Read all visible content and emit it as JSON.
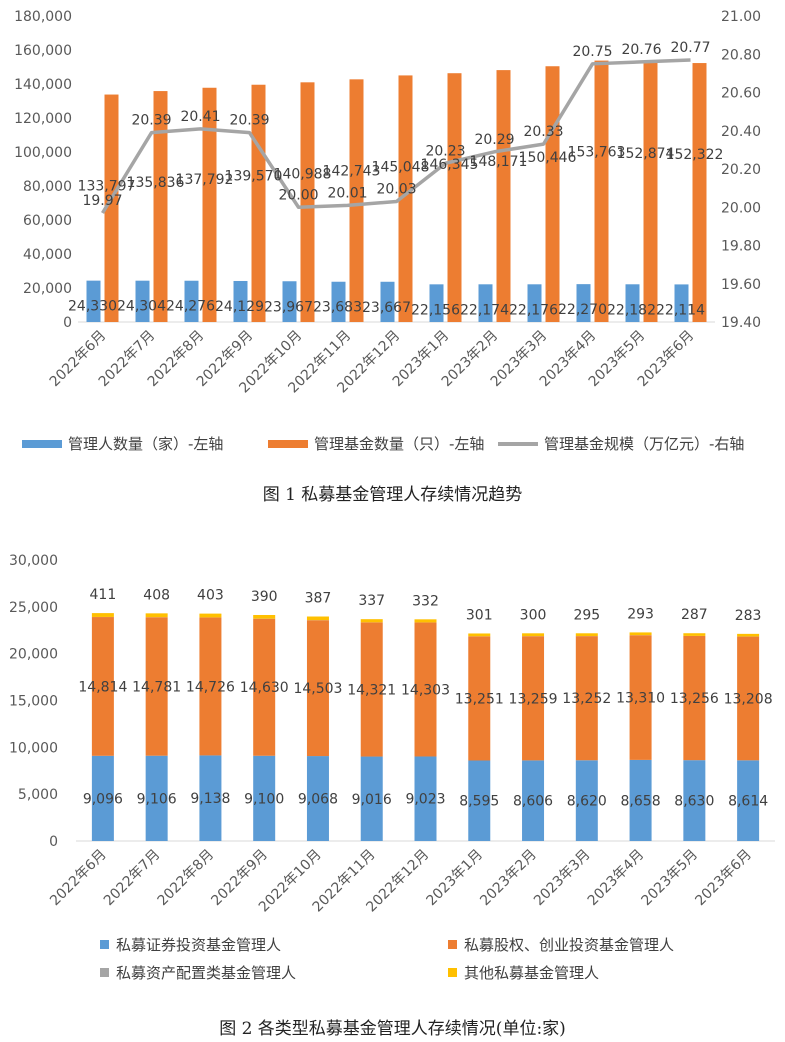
{
  "chart_data": [
    {
      "type": "bar",
      "categories": [
        "2022年6月",
        "2022年7月",
        "2022年8月",
        "2022年9月",
        "2022年10月",
        "2022年11月",
        "2022年12月",
        "2023年1月",
        "2023年2月",
        "2023年3月",
        "2023年4月",
        "2023年5月",
        "2023年6月"
      ],
      "series": [
        {
          "name": "管理人数量（家）-左轴",
          "kind": "bar",
          "axis": "left",
          "color": "#5b9bd5",
          "values": [
            24330,
            24304,
            24276,
            24129,
            23967,
            23683,
            23667,
            22156,
            22174,
            22176,
            22270,
            22182,
            22114
          ],
          "labels": [
            "24,330",
            "24,304",
            "24,276",
            "24,129",
            "23,967",
            "23,683",
            "23,667",
            "22,156",
            "22,174",
            "22,176",
            "22,270",
            "22,182",
            "22,114"
          ]
        },
        {
          "name": "管理基金数量（只）-左轴",
          "kind": "bar",
          "axis": "left",
          "color": "#ed7d31",
          "values": [
            133797,
            135836,
            137792,
            139570,
            140988,
            142743,
            145048,
            146345,
            148171,
            150446,
            153763,
            152874,
            152322
          ],
          "labels": [
            "133,797",
            "135,836",
            "137,792",
            "139,570",
            "140,988",
            "142,743",
            "145,048",
            "146,345",
            "148,171",
            "150,446",
            "153,763",
            "152,874",
            "152,322"
          ]
        },
        {
          "name": "管理基金规模（万亿元）-右轴",
          "kind": "line",
          "axis": "right",
          "color": "#a5a5a5",
          "values": [
            19.97,
            20.39,
            20.41,
            20.39,
            20.0,
            20.01,
            20.03,
            20.23,
            20.29,
            20.33,
            20.75,
            20.76,
            20.77
          ],
          "labels": [
            "19.97",
            "20.39",
            "20.41",
            "20.39",
            "20.00",
            "20.01",
            "20.03",
            "20.23",
            "20.29",
            "20.33",
            "20.75",
            "20.76",
            "20.77"
          ]
        }
      ],
      "left_axis": {
        "min": 0,
        "max": 180000,
        "step": 20000,
        "ticks": [
          "0",
          "20,000",
          "40,000",
          "60,000",
          "80,000",
          "100,000",
          "120,000",
          "140,000",
          "160,000",
          "180,000"
        ]
      },
      "right_axis": {
        "min": 19.4,
        "max": 21.0,
        "step": 0.2,
        "ticks": [
          "19.40",
          "19.60",
          "19.80",
          "20.00",
          "20.20",
          "20.40",
          "20.60",
          "20.80",
          "21.00"
        ]
      },
      "grid": false,
      "legend_position": "bottom",
      "caption": "图 1  私募基金管理人存续情况趋势"
    },
    {
      "type": "stacked-bar",
      "categories": [
        "2022年6月",
        "2022年7月",
        "2022年8月",
        "2022年9月",
        "2022年10月",
        "2022年11月",
        "2022年12月",
        "2023年1月",
        "2023年2月",
        "2023年3月",
        "2023年4月",
        "2023年5月",
        "2023年6月"
      ],
      "series": [
        {
          "name": "私募证券投资基金管理人",
          "color": "#5b9bd5",
          "values": [
            9096,
            9106,
            9138,
            9100,
            9068,
            9016,
            9023,
            8595,
            8606,
            8620,
            8658,
            8630,
            8614
          ],
          "labels": [
            "9,096",
            "9,106",
            "9,138",
            "9,100",
            "9,068",
            "9,016",
            "9,023",
            "8,595",
            "8,606",
            "8,620",
            "8,658",
            "8,630",
            "8,614"
          ]
        },
        {
          "name": "私募股权、创业投资基金管理人",
          "color": "#ed7d31",
          "values": [
            14814,
            14781,
            14726,
            14630,
            14503,
            14321,
            14303,
            13251,
            13259,
            13252,
            13310,
            13256,
            13208
          ],
          "labels": [
            "14,814",
            "14,781",
            "14,726",
            "14,630",
            "14,503",
            "14,321",
            "14,303",
            "13,251",
            "13,259",
            "13,252",
            "13,310",
            "13,256",
            "13,208"
          ]
        },
        {
          "name": "私募资产配置类基金管理人",
          "color": "#a5a5a5",
          "values": [
            9,
            9,
            9,
            9,
            9,
            9,
            9,
            9,
            9,
            9,
            9,
            9,
            9
          ],
          "labels": [
            "",
            "",
            "",
            "",
            "",
            "",
            "",
            "",
            "",
            "",
            "",
            "",
            ""
          ]
        },
        {
          "name": "其他私募基金管理人",
          "color": "#ffc000",
          "values": [
            411,
            408,
            403,
            390,
            387,
            337,
            332,
            301,
            300,
            295,
            293,
            287,
            283
          ],
          "labels": [
            "411",
            "408",
            "403",
            "390",
            "387",
            "337",
            "332",
            "301",
            "300",
            "295",
            "293",
            "287",
            "283"
          ]
        }
      ],
      "y_axis": {
        "min": 0,
        "max": 30000,
        "step": 5000,
        "ticks": [
          "0",
          "5,000",
          "10,000",
          "15,000",
          "20,000",
          "25,000",
          "30,000"
        ]
      },
      "grid": false,
      "legend_position": "bottom",
      "caption": "图 2  各类型私募基金管理人存续情况(单位:家)"
    }
  ]
}
